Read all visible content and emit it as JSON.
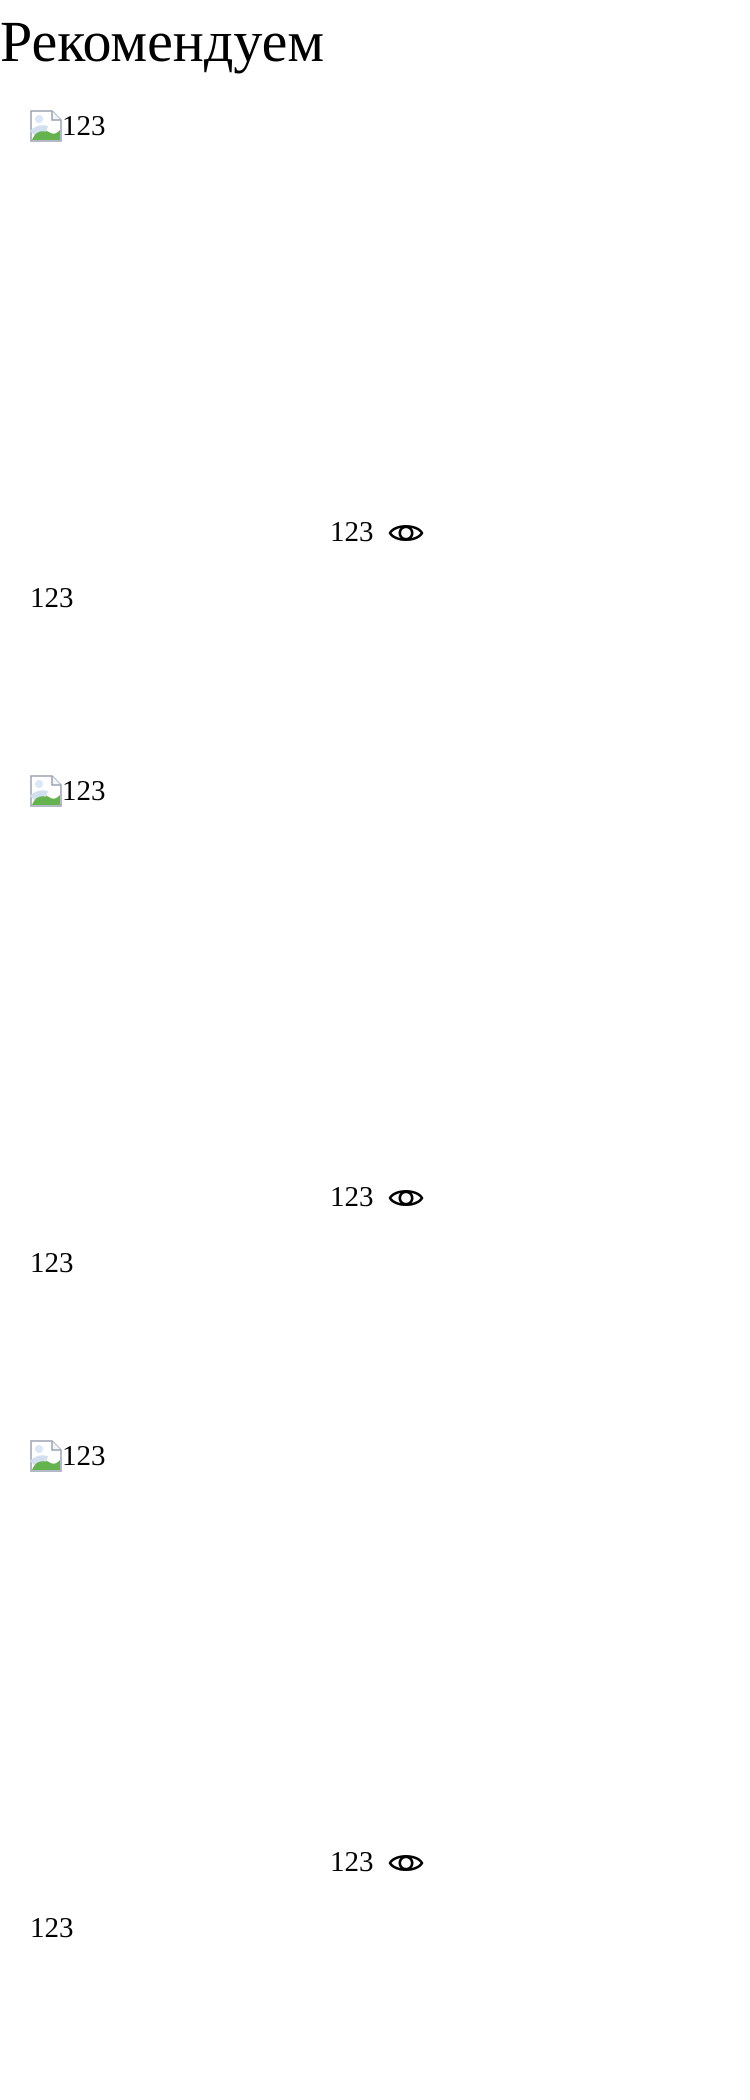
{
  "page": {
    "title": "Рекомендуем"
  },
  "cards": [
    {
      "image_alt": "123",
      "views": "123",
      "caption": "123",
      "image_icon": "broken-image-icon",
      "views_icon": "eye-icon"
    },
    {
      "image_alt": "123",
      "views": "123",
      "caption": "123",
      "image_icon": "broken-image-icon",
      "views_icon": "eye-icon"
    },
    {
      "image_alt": "123",
      "views": "123",
      "caption": "123",
      "image_icon": "broken-image-icon",
      "views_icon": "eye-icon"
    }
  ]
}
